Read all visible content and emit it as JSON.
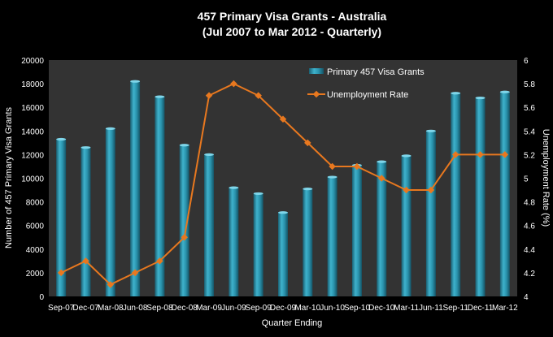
{
  "chart_data": {
    "type": "bar",
    "title": "457 Primary  Visa Grants - Australia",
    "subtitle": "(Jul 2007 to Mar 2012 - Quarterly)",
    "xlabel": "Quarter Ending",
    "ylabel_left": "Number of 457 Primary Visa Grants",
    "ylabel_right": "Unemployment Rate (%)",
    "categories": [
      "Sep-07",
      "Dec-07",
      "Mar-08",
      "Jun-08",
      "Sep-08",
      "Dec-08",
      "Mar-09",
      "Jun-09",
      "Sep-09",
      "Dec-09",
      "Mar-10",
      "Jun-10",
      "Sep-10",
      "Dec-10",
      "Mar-11",
      "Jun-11",
      "Sep-11",
      "Dec-11",
      "Mar-12"
    ],
    "y_left_lim": [
      0,
      20000
    ],
    "y_left_ticks": [
      "0",
      "2000",
      "4000",
      "6000",
      "8000",
      "10000",
      "12000",
      "14000",
      "16000",
      "18000",
      "20000"
    ],
    "y_right_lim": [
      4,
      6
    ],
    "y_right_ticks": [
      "4",
      "4.2",
      "4.4",
      "4.6",
      "4.8",
      "5",
      "5.2",
      "5.4",
      "5.6",
      "5.8",
      "6"
    ],
    "series": [
      {
        "name": "Primary 457 Visa Grants",
        "type": "bar",
        "axis": "left",
        "color": "#2b8fa8",
        "values": [
          13300,
          12600,
          14200,
          18200,
          16900,
          12800,
          12000,
          9200,
          8700,
          7100,
          9100,
          10100,
          11100,
          11400,
          11900,
          14000,
          17200,
          16800,
          17300
        ]
      },
      {
        "name": "Unemployment Rate",
        "type": "line",
        "axis": "right",
        "color": "#e8781f",
        "values": [
          4.2,
          4.3,
          4.1,
          4.2,
          4.3,
          4.5,
          5.7,
          5.8,
          5.7,
          5.5,
          5.3,
          5.1,
          5.1,
          5.0,
          4.9,
          4.9,
          5.2,
          5.2,
          5.2
        ]
      }
    ],
    "legend_position": "top-right",
    "background": "#000000",
    "plot_background": "#333333"
  }
}
